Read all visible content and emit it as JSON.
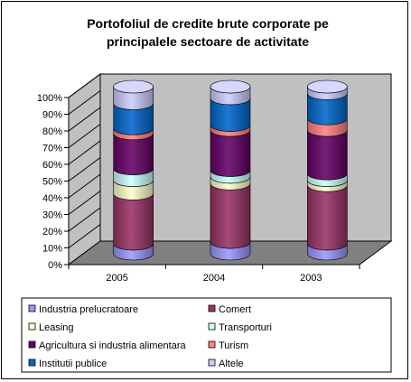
{
  "chart_data": {
    "type": "bar",
    "stacked": true,
    "percent": true,
    "three_d": true,
    "bar_shape": "cylinder",
    "title_lines": [
      "Portofoliul de credite brute corporate pe",
      "principalele sectoare de activitate"
    ],
    "categories": [
      "2005",
      "2004",
      "2003"
    ],
    "y_ticks": [
      "0%",
      "10%",
      "20%",
      "30%",
      "40%",
      "50%",
      "60%",
      "70%",
      "80%",
      "90%",
      "100%"
    ],
    "ylim": [
      0,
      100
    ],
    "grid": false,
    "legend_position": "bottom",
    "wall_color": "#c0c0c0",
    "floor_color": "#808080",
    "series": [
      {
        "name": "Industria prelucratoare",
        "color": "#9999ff",
        "values": [
          6,
          7,
          6
        ]
      },
      {
        "name": "Comert",
        "color": "#993366",
        "values": [
          30,
          35,
          35
        ]
      },
      {
        "name": "Leasing",
        "color": "#ffffcc",
        "values": [
          8,
          4,
          3
        ]
      },
      {
        "name": "Transporturi",
        "color": "#ccffff",
        "values": [
          7,
          4,
          4
        ]
      },
      {
        "name": "Agricultura si industria alimentara",
        "color": "#660066",
        "values": [
          21,
          24,
          26
        ]
      },
      {
        "name": "Turism",
        "color": "#ff8080",
        "values": [
          3,
          3,
          7
        ]
      },
      {
        "name": "Institutii publice",
        "color": "#0066cc",
        "values": [
          15,
          16,
          15
        ]
      },
      {
        "name": "Altele",
        "color": "#ccccff",
        "values": [
          10,
          7,
          4
        ]
      }
    ]
  }
}
